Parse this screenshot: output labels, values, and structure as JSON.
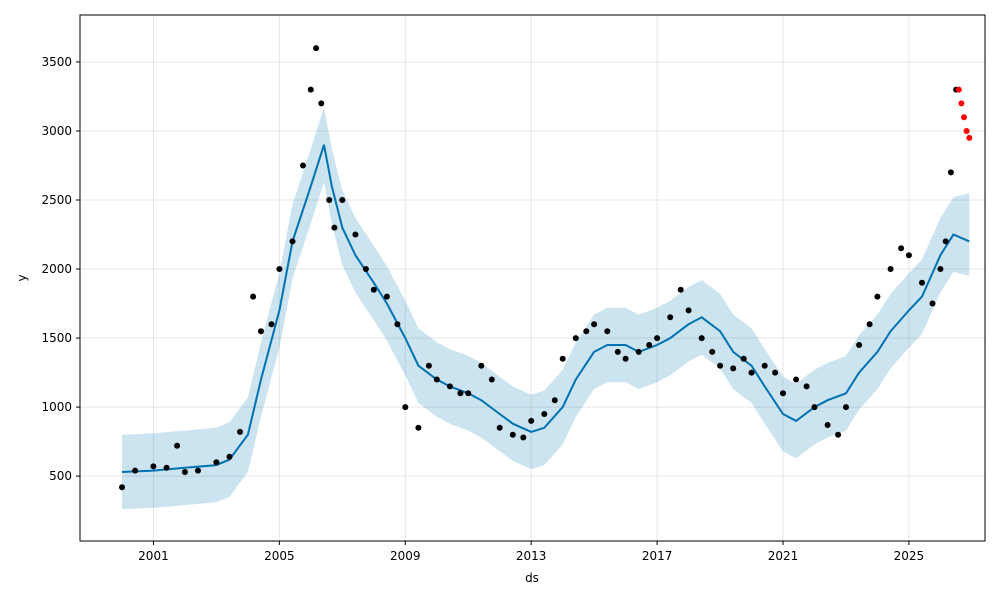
{
  "chart_data": {
    "type": "line",
    "title": "",
    "xlabel": "ds",
    "ylabel": "y",
    "x_ticks": [
      "2001",
      "2005",
      "2009",
      "2013",
      "2017",
      "2021",
      "2025"
    ],
    "y_ticks": [
      "500",
      "1000",
      "1500",
      "2000",
      "2500",
      "3000",
      "3500"
    ],
    "xlim": [
      "1998-09-01",
      "2027-06-01"
    ],
    "ylim": [
      30,
      3840
    ],
    "grid": true,
    "colors": {
      "forecast_line": "#0072b2",
      "uncertainty_band": "#0072b2",
      "actual_points": "#000000",
      "highlight_points": "#ff0000"
    },
    "series": [
      {
        "kind": "points",
        "x": [
          "2000-01",
          "2000-06",
          "2001-01",
          "2001-06",
          "2001-10",
          "2002-01",
          "2002-06",
          "2003-01",
          "2003-06",
          "2003-10",
          "2004-03",
          "2004-06",
          "2004-10",
          "2005-01",
          "2005-06",
          "2005-10",
          "2006-01",
          "2006-03",
          "2006-05",
          "2006-08",
          "2006-10",
          "2007-01",
          "2007-06",
          "2007-10",
          "2008-01",
          "2008-06",
          "2008-10",
          "2009-01",
          "2009-06",
          "2009-10",
          "2010-01",
          "2010-06",
          "2010-10",
          "2011-01",
          "2011-06",
          "2011-10",
          "2012-01",
          "2012-06",
          "2012-10",
          "2013-01",
          "2013-06",
          "2013-10",
          "2014-01",
          "2014-06",
          "2014-10",
          "2015-01",
          "2015-06",
          "2015-10",
          "2016-01",
          "2016-06",
          "2016-10",
          "2017-01",
          "2017-06",
          "2017-10",
          "2018-01",
          "2018-06",
          "2018-10",
          "2019-01",
          "2019-06",
          "2019-10",
          "2020-01",
          "2020-06",
          "2020-10",
          "2021-01",
          "2021-06",
          "2021-10",
          "2022-01",
          "2022-06",
          "2022-10",
          "2023-01",
          "2023-06",
          "2023-10",
          "2024-01",
          "2024-06",
          "2024-10",
          "2025-01",
          "2025-06",
          "2025-10",
          "2026-01",
          "2026-03",
          "2026-05",
          "2026-07"
        ],
        "y": [
          420,
          540,
          570,
          560,
          720,
          530,
          540,
          600,
          640,
          820,
          1800,
          1550,
          1600,
          2000,
          2200,
          2750,
          3300,
          3600,
          3200,
          2500,
          2300,
          2500,
          2250,
          2000,
          1850,
          1800,
          1600,
          1000,
          850,
          1300,
          1200,
          1150,
          1100,
          1100,
          1300,
          1200,
          850,
          800,
          780,
          900,
          950,
          1050,
          1350,
          1500,
          1550,
          1600,
          1550,
          1400,
          1350,
          1400,
          1450,
          1500,
          1650,
          1850,
          1700,
          1500,
          1400,
          1300,
          1280,
          1350,
          1250,
          1300,
          1250,
          1100,
          1200,
          1150,
          1000,
          870,
          800,
          1000,
          1450,
          1600,
          1800,
          2000,
          2150,
          2100,
          1900,
          1750,
          2000,
          2200,
          2700,
          3300
        ]
      },
      {
        "kind": "points",
        "color": "highlight",
        "x": [
          "2026-08",
          "2026-09",
          "2026-10",
          "2026-11",
          "2026-12"
        ],
        "y": [
          3300,
          3200,
          3100,
          3000,
          2950
        ]
      },
      {
        "kind": "line",
        "x": [
          "2000-01",
          "2001-01",
          "2002-01",
          "2003-01",
          "2003-06",
          "2004-01",
          "2004-06",
          "2005-01",
          "2005-06",
          "2006-01",
          "2006-06",
          "2006-09",
          "2007-01",
          "2007-06",
          "2008-01",
          "2008-06",
          "2009-01",
          "2009-06",
          "2010-01",
          "2010-06",
          "2011-01",
          "2011-06",
          "2012-01",
          "2012-06",
          "2013-01",
          "2013-06",
          "2014-01",
          "2014-06",
          "2015-01",
          "2015-06",
          "2016-01",
          "2016-06",
          "2017-01",
          "2017-06",
          "2018-01",
          "2018-06",
          "2019-01",
          "2019-06",
          "2020-01",
          "2020-06",
          "2021-01",
          "2021-06",
          "2022-01",
          "2022-06",
          "2023-01",
          "2023-06",
          "2024-01",
          "2024-06",
          "2025-01",
          "2025-06",
          "2026-01",
          "2026-06",
          "2026-12"
        ],
        "y": [
          530,
          540,
          560,
          580,
          620,
          800,
          1200,
          1700,
          2200,
          2600,
          2900,
          2600,
          2300,
          2100,
          1900,
          1750,
          1500,
          1300,
          1200,
          1150,
          1100,
          1050,
          950,
          880,
          820,
          850,
          1000,
          1200,
          1400,
          1450,
          1450,
          1400,
          1450,
          1500,
          1600,
          1650,
          1550,
          1400,
          1300,
          1150,
          950,
          900,
          1000,
          1050,
          1100,
          1250,
          1400,
          1550,
          1700,
          1800,
          2100,
          2250,
          2200
        ]
      },
      {
        "kind": "band",
        "x": [
          "2000-01",
          "2001-01",
          "2002-01",
          "2003-01",
          "2003-06",
          "2004-01",
          "2004-06",
          "2005-01",
          "2005-06",
          "2006-01",
          "2006-06",
          "2006-09",
          "2007-01",
          "2007-06",
          "2008-01",
          "2008-06",
          "2009-01",
          "2009-06",
          "2010-01",
          "2010-06",
          "2011-01",
          "2011-06",
          "2012-01",
          "2012-06",
          "2013-01",
          "2013-06",
          "2014-01",
          "2014-06",
          "2015-01",
          "2015-06",
          "2016-01",
          "2016-06",
          "2017-01",
          "2017-06",
          "2018-01",
          "2018-06",
          "2019-01",
          "2019-06",
          "2020-01",
          "2020-06",
          "2021-01",
          "2021-06",
          "2022-01",
          "2022-06",
          "2023-01",
          "2023-06",
          "2024-01",
          "2024-06",
          "2025-01",
          "2025-06",
          "2026-01",
          "2026-06",
          "2026-12"
        ],
        "upper": [
          800,
          810,
          830,
          850,
          890,
          1070,
          1470,
          1970,
          2470,
          2870,
          3170,
          2870,
          2570,
          2370,
          2170,
          2020,
          1770,
          1570,
          1470,
          1420,
          1370,
          1320,
          1220,
          1150,
          1090,
          1120,
          1270,
          1470,
          1670,
          1720,
          1720,
          1670,
          1720,
          1770,
          1870,
          1920,
          1820,
          1670,
          1570,
          1420,
          1220,
          1170,
          1270,
          1320,
          1370,
          1520,
          1670,
          1820,
          1970,
          2070,
          2370,
          2520,
          2550
        ],
        "lower": [
          260,
          270,
          290,
          310,
          350,
          530,
          930,
          1430,
          1930,
          2330,
          2630,
          2330,
          2030,
          1830,
          1630,
          1480,
          1230,
          1030,
          930,
          880,
          830,
          780,
          680,
          610,
          550,
          580,
          730,
          930,
          1130,
          1180,
          1180,
          1130,
          1180,
          1230,
          1330,
          1380,
          1280,
          1130,
          1030,
          880,
          680,
          630,
          730,
          780,
          830,
          980,
          1130,
          1280,
          1430,
          1530,
          1830,
          1980,
          1950
        ]
      }
    ]
  }
}
